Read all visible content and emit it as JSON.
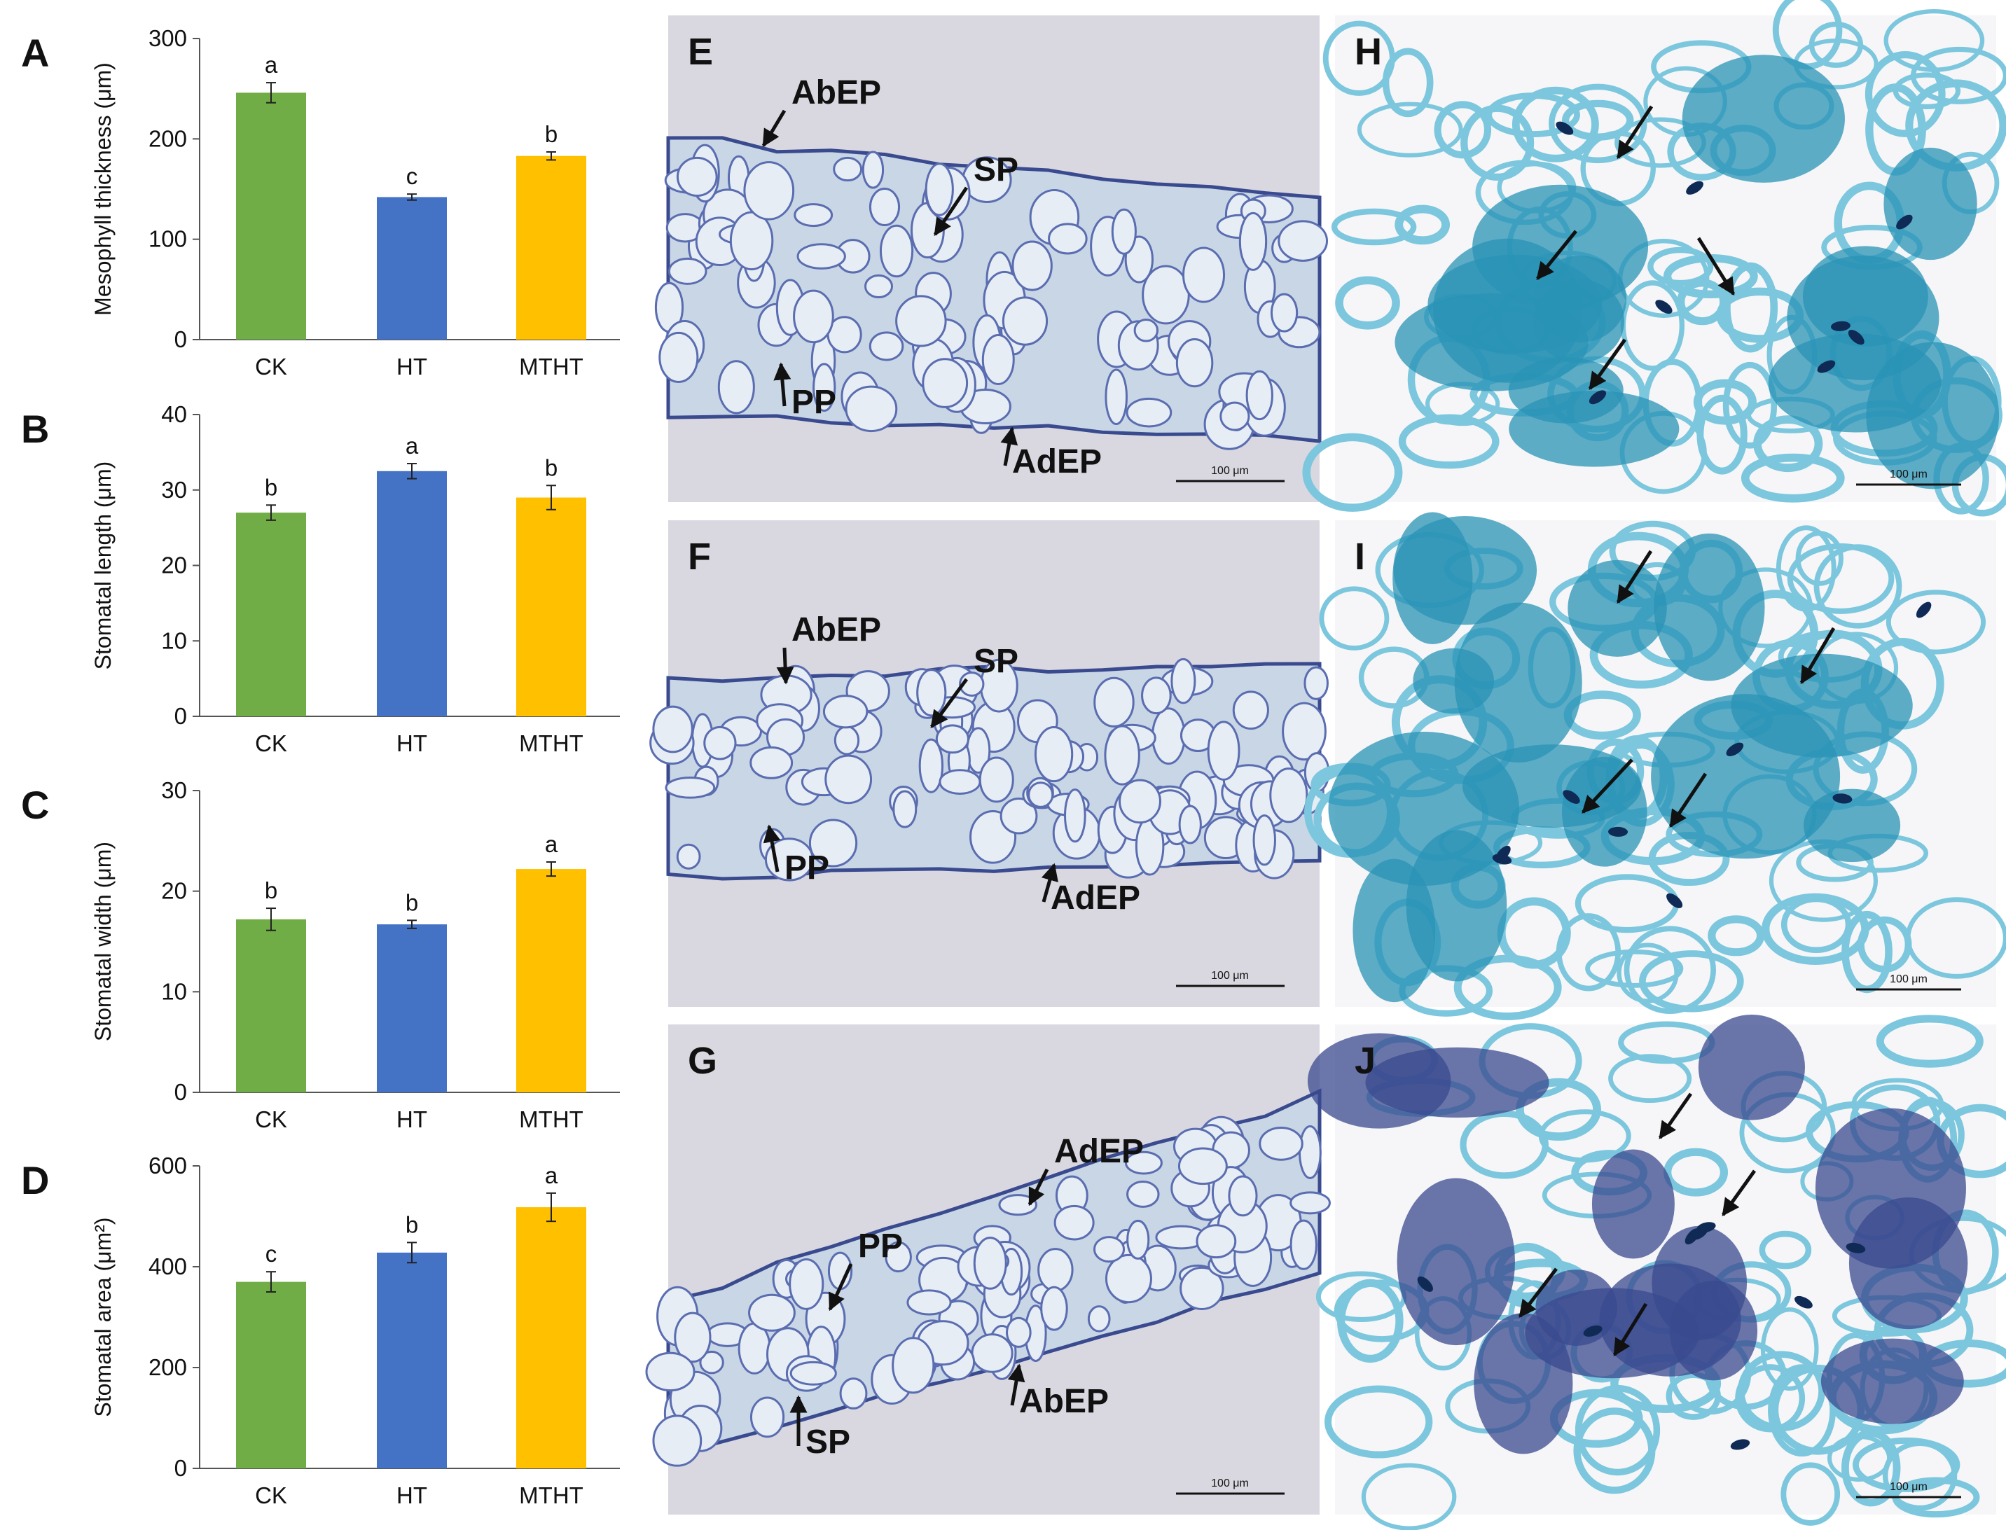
{
  "colors": {
    "CK": "#70ad47",
    "HT": "#4472c4",
    "MTHT": "#ffc000",
    "micrograph_bg": "#d9d8e0",
    "stomata_bg": "#f6f6f8",
    "stain_dark": "#3a4a8f",
    "stain_cyan": "#2a93b5",
    "stain_light": "#7cc7dd"
  },
  "chart_data": [
    {
      "panel_letter": "A",
      "type": "bar",
      "categories": [
        "CK",
        "HT",
        "MTHT"
      ],
      "values": [
        246,
        142,
        183
      ],
      "errors": [
        10,
        3,
        4
      ],
      "letters": [
        "a",
        "c",
        "b"
      ],
      "ylabel": "Mesophyll thickness (μm)",
      "ylim": [
        0,
        300
      ],
      "yticks": [
        0,
        100,
        200,
        300
      ],
      "grid": false
    },
    {
      "panel_letter": "B",
      "type": "bar",
      "categories": [
        "CK",
        "HT",
        "MTHT"
      ],
      "values": [
        27,
        32.5,
        29
      ],
      "errors": [
        1,
        1,
        1.6
      ],
      "letters": [
        "b",
        "a",
        "b"
      ],
      "ylabel": "Stomatal length (μm)",
      "ylim": [
        0,
        40
      ],
      "yticks": [
        0,
        10,
        20,
        30,
        40
      ],
      "grid": false
    },
    {
      "panel_letter": "C",
      "type": "bar",
      "categories": [
        "CK",
        "HT",
        "MTHT"
      ],
      "values": [
        17.2,
        16.7,
        22.2
      ],
      "errors": [
        1.1,
        0.4,
        0.7
      ],
      "letters": [
        "b",
        "b",
        "a"
      ],
      "ylabel": "Stomatal width (μm)",
      "ylim": [
        0,
        30
      ],
      "yticks": [
        0,
        10,
        20,
        30
      ],
      "grid": false
    },
    {
      "panel_letter": "D",
      "type": "bar",
      "categories": [
        "CK",
        "HT",
        "MTHT"
      ],
      "values": [
        370,
        428,
        518
      ],
      "errors": [
        20,
        20,
        28
      ],
      "letters": [
        "c",
        "b",
        "a"
      ],
      "ylabel": "Stomatal area (μm²)",
      "ylim": [
        0,
        600
      ],
      "yticks": [
        0,
        200,
        400,
        600
      ],
      "grid": false
    }
  ],
  "micrographs": [
    {
      "letter": "E",
      "kind": "cross-section",
      "labels": [
        "AbEP",
        "SP",
        "PP",
        "AdEP"
      ],
      "scale_bar": "100 μm"
    },
    {
      "letter": "F",
      "kind": "cross-section",
      "labels": [
        "AbEP",
        "SP",
        "PP",
        "AdEP"
      ],
      "scale_bar": "100 μm"
    },
    {
      "letter": "G",
      "kind": "cross-section",
      "labels": [
        "AdEP",
        "PP",
        "SP",
        "AbEP"
      ],
      "scale_bar": "100 μm"
    },
    {
      "letter": "H",
      "kind": "stomata",
      "scale_bar": "100 μm"
    },
    {
      "letter": "I",
      "kind": "stomata",
      "scale_bar": "100 μm"
    },
    {
      "letter": "J",
      "kind": "stomata",
      "scale_bar": "100 μm"
    }
  ]
}
